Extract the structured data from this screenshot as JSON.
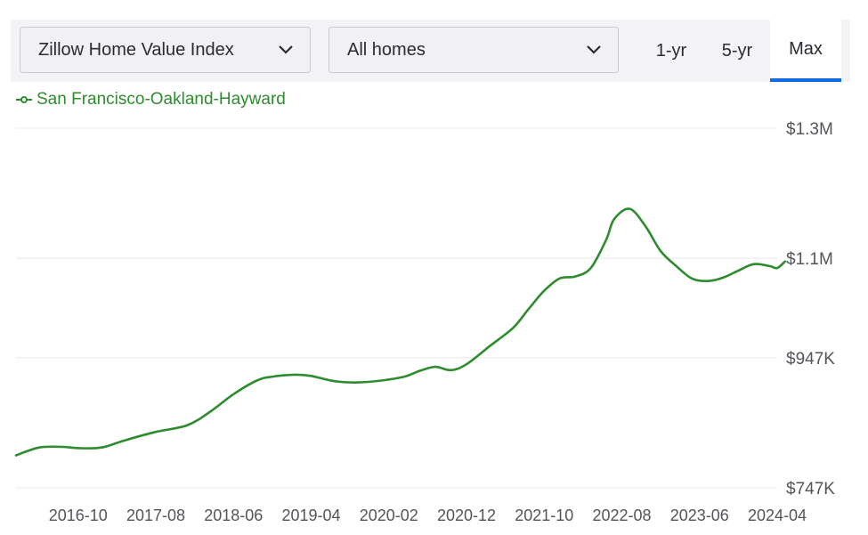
{
  "toolbar": {
    "metric_select": {
      "value": "Zillow Home Value Index",
      "icon": "chevron-down-icon"
    },
    "type_select": {
      "value": "All homes",
      "icon": "chevron-down-icon"
    },
    "range_buttons": [
      {
        "label": "1-yr",
        "selected": false
      },
      {
        "label": "5-yr",
        "selected": false
      },
      {
        "label": "Max",
        "selected": true
      }
    ],
    "accent_color": "#0d6de0"
  },
  "chart_data": {
    "type": "line",
    "title": "",
    "xlabel": "",
    "ylabel": "",
    "legend_position": "top-left",
    "grid": true,
    "x_ticks": [
      "2016-10",
      "2017-08",
      "2018-06",
      "2019-04",
      "2020-02",
      "2020-12",
      "2021-10",
      "2022-08",
      "2023-06",
      "2024-04"
    ],
    "y_ticks": [
      {
        "value": 747000,
        "label": "$747K"
      },
      {
        "value": 947000,
        "label": "$947K"
      },
      {
        "value": 1100000,
        "label": "$1.1M"
      },
      {
        "value": 1300000,
        "label": "$1.3M"
      }
    ],
    "ylim": [
      747000,
      1300000
    ],
    "xlim": [
      "2016-02",
      "2024-04"
    ],
    "series": [
      {
        "name": "San Francisco-Oakland-Hayward",
        "color": "#2e8b2e",
        "points": [
          [
            "2016-02",
            797000
          ],
          [
            "2016-05",
            809000
          ],
          [
            "2016-08",
            810000
          ],
          [
            "2016-10",
            808000
          ],
          [
            "2017-01",
            809000
          ],
          [
            "2017-04",
            820000
          ],
          [
            "2017-08",
            833000
          ],
          [
            "2017-12",
            843000
          ],
          [
            "2018-03",
            864000
          ],
          [
            "2018-06",
            891000
          ],
          [
            "2018-09",
            912000
          ],
          [
            "2018-11",
            918000
          ],
          [
            "2019-02",
            921000
          ],
          [
            "2019-04",
            919000
          ],
          [
            "2019-07",
            911000
          ],
          [
            "2019-10",
            909000
          ],
          [
            "2020-01",
            912000
          ],
          [
            "2020-04",
            918000
          ],
          [
            "2020-06",
            927000
          ],
          [
            "2020-08",
            933000
          ],
          [
            "2020-10",
            928000
          ],
          [
            "2020-12",
            937000
          ],
          [
            "2021-03",
            965000
          ],
          [
            "2021-06",
            993000
          ],
          [
            "2021-08",
            1022000
          ],
          [
            "2021-10",
            1050000
          ],
          [
            "2021-12",
            1069000
          ],
          [
            "2022-02",
            1072000
          ],
          [
            "2022-04",
            1085000
          ],
          [
            "2022-06",
            1129000
          ],
          [
            "2022-07",
            1160000
          ],
          [
            "2022-09",
            1176000
          ],
          [
            "2022-11",
            1150000
          ],
          [
            "2023-01",
            1111000
          ],
          [
            "2023-03",
            1088000
          ],
          [
            "2023-05",
            1069000
          ],
          [
            "2023-07",
            1065000
          ],
          [
            "2023-09",
            1070000
          ],
          [
            "2023-11",
            1081000
          ],
          [
            "2024-01",
            1091000
          ],
          [
            "2024-03",
            1088000
          ],
          [
            "2024-04",
            1085000
          ],
          [
            "2024-05",
            1095000
          ]
        ]
      }
    ]
  }
}
